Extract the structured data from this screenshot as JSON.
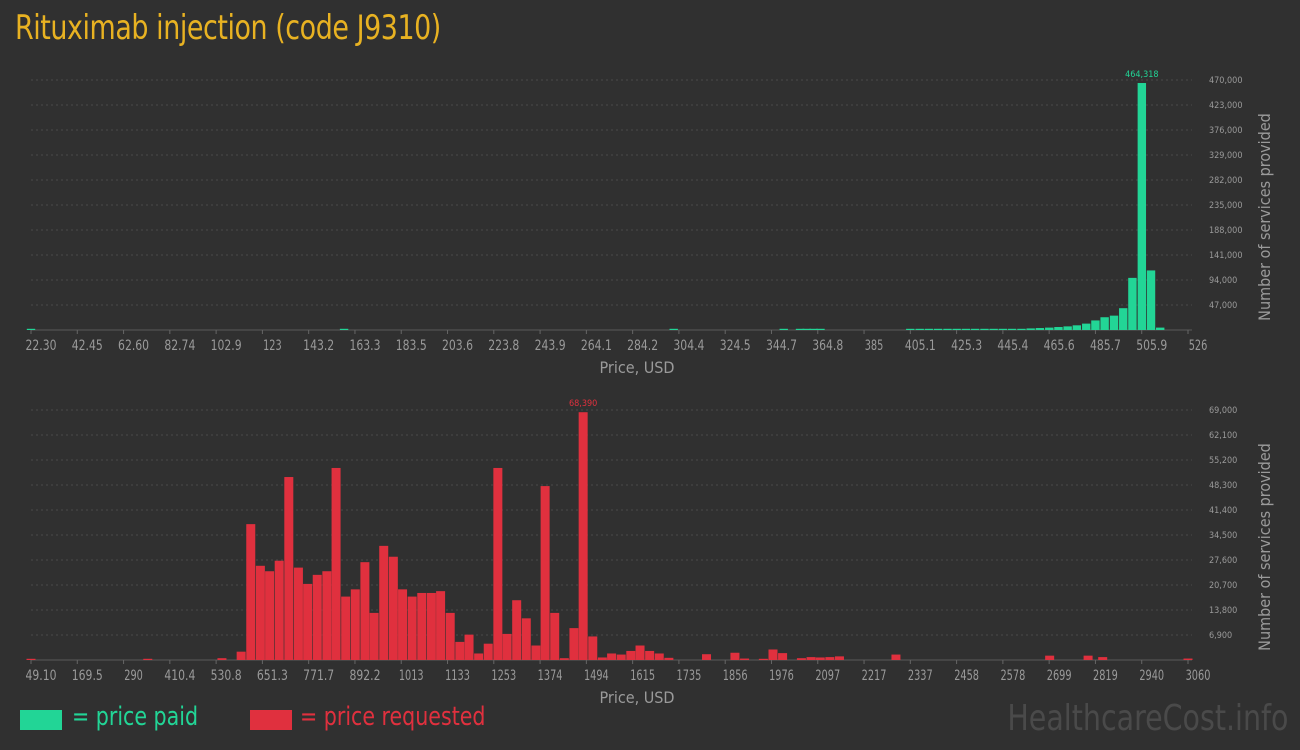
{
  "title": "Rituximab injection (code J9310)",
  "watermark": "HealthcareCost.info",
  "colors": {
    "background": "#303030",
    "title": "#e8b222",
    "paid": "#22d596",
    "requested": "#e0303e",
    "axis_text": "#9a9a9a",
    "grid": "#4a4a4a"
  },
  "legend": {
    "paid_label": "= price paid",
    "requested_label": "= price requested"
  },
  "chart_data": [
    {
      "type": "bar",
      "series_name": "price paid",
      "xlabel": "Price, USD",
      "ylabel": "Number of services provided",
      "xlim": [
        22.3,
        526
      ],
      "ylim": [
        0,
        470000
      ],
      "x_ticks": [
        "22.30",
        "42.45",
        "62.60",
        "82.74",
        "102.9",
        "123",
        "143.2",
        "163.3",
        "183.5",
        "203.6",
        "223.8",
        "243.9",
        "264.1",
        "284.2",
        "304.4",
        "324.5",
        "344.7",
        "364.8",
        "385",
        "405.1",
        "425.3",
        "445.4",
        "465.6",
        "485.7",
        "505.9",
        "526"
      ],
      "y_ticks": [
        "47,000",
        "94,000",
        "141,000",
        "188,000",
        "235,000",
        "282,000",
        "329,000",
        "376,000",
        "423,000",
        "470,000"
      ],
      "peak_label": "464,318",
      "bins": [
        {
          "x": 22.3,
          "value": 1500
        },
        {
          "x": 158.6,
          "value": 800
        },
        {
          "x": 302.1,
          "value": 600
        },
        {
          "x": 350,
          "value": 500
        },
        {
          "x": 357.1,
          "value": 400
        },
        {
          "x": 360,
          "value": 300
        },
        {
          "x": 363,
          "value": 500
        },
        {
          "x": 366,
          "value": 400
        },
        {
          "x": 405.1,
          "value": 900
        },
        {
          "x": 409.2,
          "value": 700
        },
        {
          "x": 413.2,
          "value": 900
        },
        {
          "x": 417.2,
          "value": 800
        },
        {
          "x": 421.3,
          "value": 900
        },
        {
          "x": 425.3,
          "value": 1100
        },
        {
          "x": 429.3,
          "value": 1000
        },
        {
          "x": 433.3,
          "value": 900
        },
        {
          "x": 437.4,
          "value": 800
        },
        {
          "x": 441.4,
          "value": 700
        },
        {
          "x": 445.4,
          "value": 1200
        },
        {
          "x": 449.4,
          "value": 1500
        },
        {
          "x": 453.5,
          "value": 2200
        },
        {
          "x": 457.5,
          "value": 3000
        },
        {
          "x": 461.5,
          "value": 3700
        },
        {
          "x": 465.6,
          "value": 4500
        },
        {
          "x": 469.6,
          "value": 5600
        },
        {
          "x": 473.6,
          "value": 6800
        },
        {
          "x": 477.6,
          "value": 8800
        },
        {
          "x": 481.7,
          "value": 12000
        },
        {
          "x": 485.7,
          "value": 18000
        },
        {
          "x": 489.7,
          "value": 24000
        },
        {
          "x": 493.8,
          "value": 27000
        },
        {
          "x": 497.8,
          "value": 41000
        },
        {
          "x": 501.8,
          "value": 98000
        },
        {
          "x": 505.9,
          "value": 464318
        },
        {
          "x": 509.9,
          "value": 112000
        },
        {
          "x": 513.9,
          "value": 4500
        }
      ]
    },
    {
      "type": "bar",
      "series_name": "price requested",
      "xlabel": "Price, USD",
      "ylabel": "Number of services provided",
      "xlim": [
        49.1,
        3060
      ],
      "ylim": [
        0,
        69000
      ],
      "x_ticks": [
        "49.10",
        "169.5",
        "290",
        "410.4",
        "530.8",
        "651.3",
        "771.7",
        "892.2",
        "1013",
        "1133",
        "1253",
        "1374",
        "1494",
        "1615",
        "1735",
        "1856",
        "1976",
        "2097",
        "2217",
        "2337",
        "2458",
        "2578",
        "2699",
        "2819",
        "2940",
        "3060"
      ],
      "y_ticks": [
        "6,900",
        "13,800",
        "20,700",
        "27,600",
        "34,500",
        "41,400",
        "48,300",
        "55,200",
        "62,100",
        "69,000"
      ],
      "peak_label": "68,390",
      "bins": [
        {
          "x": 49.1,
          "value": 200
        },
        {
          "x": 353,
          "value": 300
        },
        {
          "x": 546,
          "value": 500
        },
        {
          "x": 596,
          "value": 2300
        },
        {
          "x": 621,
          "value": 37500
        },
        {
          "x": 646,
          "value": 26000
        },
        {
          "x": 670,
          "value": 24500
        },
        {
          "x": 695,
          "value": 27400
        },
        {
          "x": 720,
          "value": 50500
        },
        {
          "x": 745,
          "value": 25500
        },
        {
          "x": 769,
          "value": 21000
        },
        {
          "x": 794,
          "value": 23500
        },
        {
          "x": 819,
          "value": 24500
        },
        {
          "x": 843,
          "value": 53000
        },
        {
          "x": 868,
          "value": 17500
        },
        {
          "x": 893,
          "value": 19500
        },
        {
          "x": 918,
          "value": 27000
        },
        {
          "x": 942,
          "value": 13000
        },
        {
          "x": 967,
          "value": 31500
        },
        {
          "x": 992,
          "value": 28500
        },
        {
          "x": 1016,
          "value": 19500
        },
        {
          "x": 1041,
          "value": 17500
        },
        {
          "x": 1066,
          "value": 18500
        },
        {
          "x": 1091,
          "value": 18500
        },
        {
          "x": 1115,
          "value": 19000
        },
        {
          "x": 1140,
          "value": 13000
        },
        {
          "x": 1165,
          "value": 5000
        },
        {
          "x": 1189,
          "value": 7000
        },
        {
          "x": 1214,
          "value": 1800
        },
        {
          "x": 1239,
          "value": 4500
        },
        {
          "x": 1264,
          "value": 53000
        },
        {
          "x": 1288,
          "value": 7200
        },
        {
          "x": 1313,
          "value": 16500
        },
        {
          "x": 1338,
          "value": 11500
        },
        {
          "x": 1363,
          "value": 4000
        },
        {
          "x": 1387,
          "value": 48000
        },
        {
          "x": 1412,
          "value": 13000
        },
        {
          "x": 1437,
          "value": 500
        },
        {
          "x": 1462,
          "value": 8800
        },
        {
          "x": 1486,
          "value": 68390
        },
        {
          "x": 1511,
          "value": 6500
        },
        {
          "x": 1536,
          "value": 700
        },
        {
          "x": 1560,
          "value": 1800
        },
        {
          "x": 1585,
          "value": 1500
        },
        {
          "x": 1610,
          "value": 2500
        },
        {
          "x": 1634,
          "value": 4000
        },
        {
          "x": 1659,
          "value": 2500
        },
        {
          "x": 1684,
          "value": 1800
        },
        {
          "x": 1709,
          "value": 600
        },
        {
          "x": 1807,
          "value": 1600
        },
        {
          "x": 1881,
          "value": 2000
        },
        {
          "x": 1906,
          "value": 400
        },
        {
          "x": 1955,
          "value": 300
        },
        {
          "x": 1980,
          "value": 2900
        },
        {
          "x": 2005,
          "value": 1900
        },
        {
          "x": 2054,
          "value": 500
        },
        {
          "x": 2079,
          "value": 800
        },
        {
          "x": 2103,
          "value": 700
        },
        {
          "x": 2128,
          "value": 800
        },
        {
          "x": 2153,
          "value": 1000
        },
        {
          "x": 2300,
          "value": 1500
        },
        {
          "x": 2700,
          "value": 1200
        },
        {
          "x": 2800,
          "value": 1200
        },
        {
          "x": 2838,
          "value": 800
        },
        {
          "x": 3060,
          "value": 400
        }
      ]
    }
  ]
}
